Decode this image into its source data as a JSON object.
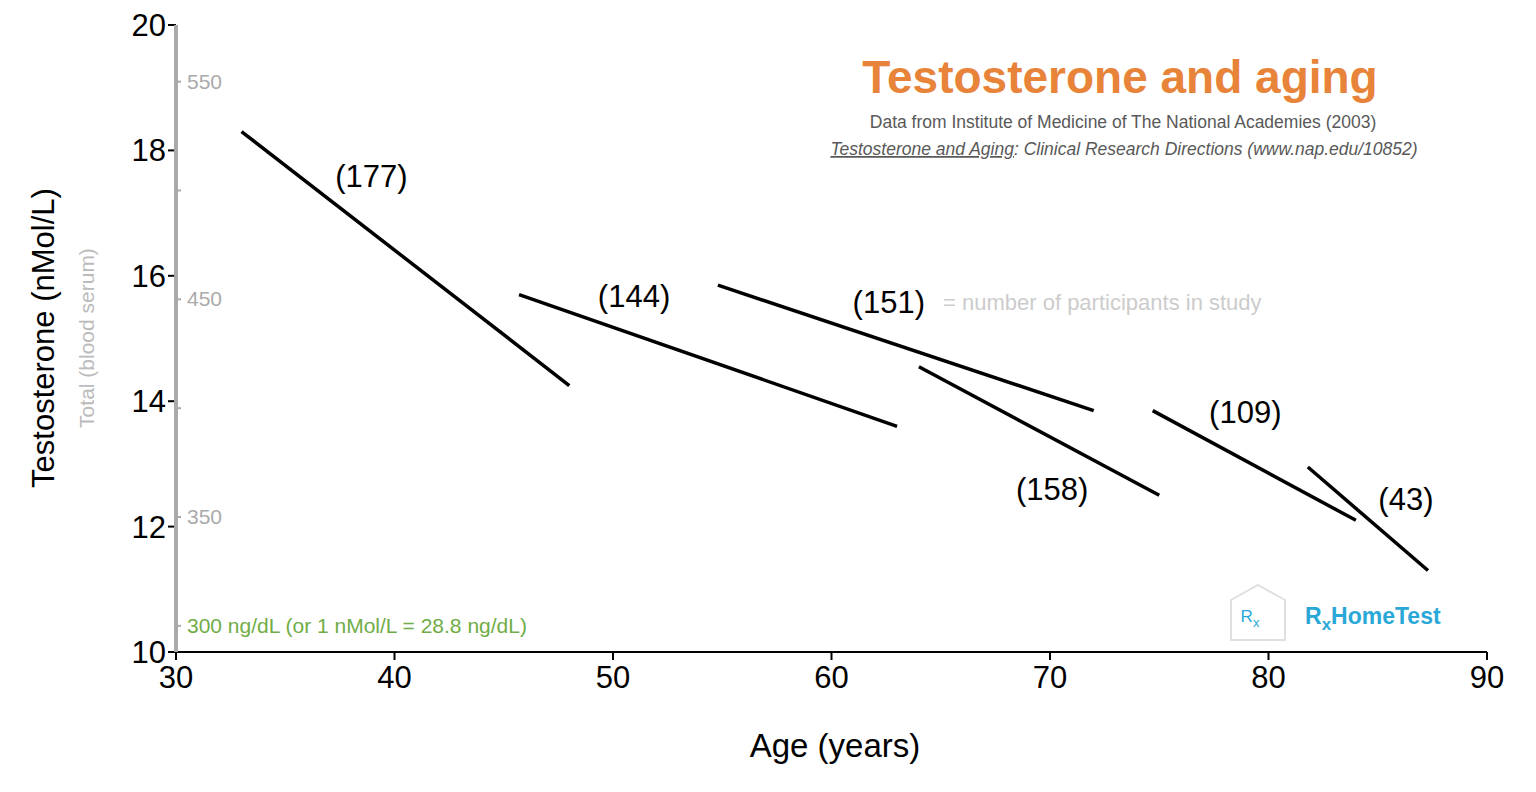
{
  "chart_data": {
    "type": "line",
    "title": "Testosterone and aging",
    "subtitle": [
      "Data from Institute of Medicine of The National Academies (2003)",
      "Testosterone and Aging: Clinical Research Directions (www.nap.edu/10852)"
    ],
    "x_label": "Age (years)",
    "y_label": "Testosterone (nMol/L)",
    "y2_label": "Total (blood serum)",
    "annotation": "= number of participants in study",
    "watermark": "RxHomeTest",
    "xlim": [
      30,
      90
    ],
    "xticks": [
      30,
      40,
      50,
      60,
      70,
      80,
      90
    ],
    "ylim": [
      10,
      20
    ],
    "yticks": [
      10,
      12,
      14,
      16,
      18,
      20
    ],
    "y2lim": [
      288,
      576
    ],
    "y2ticks": [
      {
        "value": 300,
        "label": "300 ng/dL (or 1 nMol/L = 28.8 ng/dL)"
      },
      350,
      {
        "value": 400,
        "label": null
      },
      450,
      {
        "value": 500,
        "label": null
      },
      550
    ],
    "grid": false,
    "series": [
      {
        "name": "(177)",
        "color": "#000000",
        "x": [
          33,
          48
        ],
        "values": [
          18.3,
          14.25
        ]
      },
      {
        "name": "(144)",
        "color": "#000000",
        "x": [
          45.7,
          63
        ],
        "values": [
          15.7,
          13.6
        ]
      },
      {
        "name": "(151)",
        "color": "#000000",
        "x": [
          54.8,
          72
        ],
        "values": [
          15.85,
          13.85
        ]
      },
      {
        "name": "(158)",
        "color": "#000000",
        "x": [
          64,
          75
        ],
        "values": [
          14.55,
          12.5
        ]
      },
      {
        "name": "(109)",
        "color": "#000000",
        "x": [
          74.7,
          84
        ],
        "values": [
          13.85,
          12.1
        ]
      },
      {
        "name": "(43)",
        "color": "#000000",
        "x": [
          81.8,
          87.3
        ],
        "values": [
          12.95,
          11.3
        ]
      }
    ]
  }
}
